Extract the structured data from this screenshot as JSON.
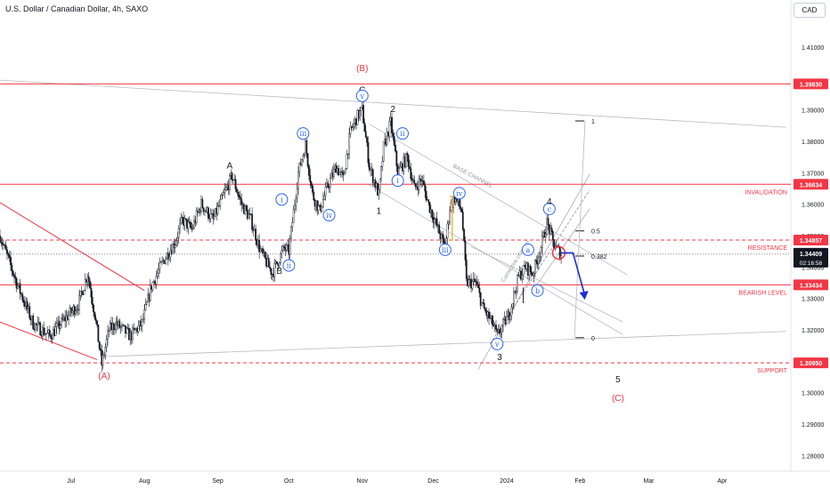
{
  "header": {
    "title": "U.S. Dollar / Canadian Dollar, 4h, SAXO",
    "currency_button": "CAD"
  },
  "chart_data": {
    "type": "candlestick",
    "symbol": "USD/CAD",
    "timeframe": "4h",
    "source": "SAXO",
    "ylim": [
      1.275,
      1.425
    ],
    "y_ticks": [
      1.28,
      1.29,
      1.3,
      1.31,
      1.32,
      1.33,
      1.34,
      1.35,
      1.36,
      1.37,
      1.38,
      1.39,
      1.41
    ],
    "x_ticks": [
      {
        "label": "Jul",
        "date": "2023-07-01"
      },
      {
        "label": "Aug",
        "date": "2023-08-01"
      },
      {
        "label": "Sep",
        "date": "2023-09-01"
      },
      {
        "label": "Oct",
        "date": "2023-10-01"
      },
      {
        "label": "Nov",
        "date": "2023-11-01"
      },
      {
        "label": "Dec",
        "date": "2023-12-01"
      },
      {
        "label": "2024",
        "date": "2024-01-01"
      },
      {
        "label": "Feb",
        "date": "2024-02-01"
      },
      {
        "label": "Mar",
        "date": "2024-03-01"
      },
      {
        "label": "Apr",
        "date": "2024-04-01"
      }
    ],
    "x_range": [
      "2023-06-01",
      "2024-04-30"
    ],
    "price_path": [
      [
        "2023-06-01",
        1.35
      ],
      [
        "2023-06-08",
        1.335
      ],
      [
        "2023-06-15",
        1.322
      ],
      [
        "2023-06-22",
        1.318
      ],
      [
        "2023-06-29",
        1.324
      ],
      [
        "2023-07-04",
        1.328
      ],
      [
        "2023-07-08",
        1.338
      ],
      [
        "2023-07-11",
        1.325
      ],
      [
        "2023-07-14",
        1.309
      ],
      [
        "2023-07-17",
        1.32
      ],
      [
        "2023-07-20",
        1.322
      ],
      [
        "2023-07-26",
        1.318
      ],
      [
        "2023-07-31",
        1.322
      ],
      [
        "2023-08-04",
        1.334
      ],
      [
        "2023-08-09",
        1.342
      ],
      [
        "2023-08-14",
        1.348
      ],
      [
        "2023-08-17",
        1.355
      ],
      [
        "2023-08-21",
        1.352
      ],
      [
        "2023-08-25",
        1.36
      ],
      [
        "2023-08-30",
        1.355
      ],
      [
        "2023-09-03",
        1.362
      ],
      [
        "2023-09-07",
        1.369
      ],
      [
        "2023-09-11",
        1.36
      ],
      [
        "2023-09-15",
        1.355
      ],
      [
        "2023-09-19",
        1.345
      ],
      [
        "2023-09-24",
        1.338
      ],
      [
        "2023-09-29",
        1.346
      ],
      [
        "2023-10-01",
        1.345
      ],
      [
        "2023-10-05",
        1.37
      ],
      [
        "2023-10-08",
        1.379
      ],
      [
        "2023-10-11",
        1.363
      ],
      [
        "2023-10-14",
        1.358
      ],
      [
        "2023-10-17",
        1.365
      ],
      [
        "2023-10-21",
        1.372
      ],
      [
        "2023-10-24",
        1.368
      ],
      [
        "2023-10-27",
        1.383
      ],
      [
        "2023-10-30",
        1.388
      ],
      [
        "2023-11-01",
        1.39
      ],
      [
        "2023-11-04",
        1.372
      ],
      [
        "2023-11-08",
        1.363
      ],
      [
        "2023-11-10",
        1.378
      ],
      [
        "2023-11-13",
        1.386
      ],
      [
        "2023-11-16",
        1.37
      ],
      [
        "2023-11-20",
        1.375
      ],
      [
        "2023-11-23",
        1.365
      ],
      [
        "2023-11-26",
        1.368
      ],
      [
        "2023-11-29",
        1.36
      ],
      [
        "2023-12-03",
        1.352
      ],
      [
        "2023-12-06",
        1.346
      ],
      [
        "2023-12-08",
        1.359
      ],
      [
        "2023-12-10",
        1.362
      ],
      [
        "2023-12-13",
        1.358
      ],
      [
        "2023-12-15",
        1.335
      ],
      [
        "2023-12-19",
        1.335
      ],
      [
        "2023-12-22",
        1.327
      ],
      [
        "2023-12-26",
        1.322
      ],
      [
        "2023-12-28",
        1.318
      ],
      [
        "2024-01-02",
        1.325
      ],
      [
        "2024-01-06",
        1.337
      ],
      [
        "2024-01-09",
        1.34
      ],
      [
        "2024-01-12",
        1.338
      ],
      [
        "2024-01-15",
        1.345
      ],
      [
        "2024-01-18",
        1.354
      ],
      [
        "2024-01-21",
        1.347
      ],
      [
        "2024-01-24",
        1.344
      ]
    ],
    "last_price": 1.34409,
    "countdown": "02:16:58",
    "horizontal_levels": [
      {
        "price": 1.3983,
        "label": "1.39830",
        "style": "solid",
        "color": "#f23645"
      },
      {
        "price": 1.36634,
        "label": "1.36634",
        "name": "INVALIDATION",
        "style": "solid",
        "color": "#f23645"
      },
      {
        "price": 1.34857,
        "label": "1.34857",
        "name": "RESISTANCE",
        "style": "dashed",
        "color": "#f23645"
      },
      {
        "price": 1.33434,
        "label": "1.33434",
        "name": "BEARISH LEVEL",
        "style": "solid",
        "color": "#f23645"
      },
      {
        "price": 1.3095,
        "label": "1.30950",
        "name": "SUPPORT",
        "style": "dashed",
        "color": "#f23645"
      }
    ],
    "fib_levels": [
      {
        "ratio": "1",
        "price": 1.3865
      },
      {
        "ratio": "0.5",
        "price": 1.3515
      },
      {
        "ratio": "0.382",
        "price": 1.3435
      },
      {
        "ratio": "0",
        "price": 1.3175
      }
    ],
    "channel_labels": [
      "BASE CHANNEL",
      "Corrective channel"
    ],
    "wave_labels": [
      {
        "text": "(B)",
        "date": "2023-11-01",
        "price": 1.4035,
        "color": "#f23645",
        "circled": false
      },
      {
        "text": "C",
        "date": "2023-11-01",
        "price": 1.3965,
        "color": "#131722",
        "circled": false
      },
      {
        "text": "v",
        "date": "2023-11-01",
        "price": 1.3945,
        "color": "#2962ff",
        "circled": true
      },
      {
        "text": "A",
        "date": "2023-09-06",
        "price": 1.3725,
        "color": "#131722",
        "circled": false
      },
      {
        "text": "B",
        "date": "2023-09-27",
        "price": 1.339,
        "color": "#131722",
        "circled": false
      },
      {
        "text": "(A)",
        "date": "2023-07-15",
        "price": 1.3055,
        "color": "#f23645",
        "circled": false
      },
      {
        "text": "iii",
        "date": "2023-10-07",
        "price": 1.3825,
        "color": "#2962ff",
        "circled": true
      },
      {
        "text": "i",
        "date": "2023-09-28",
        "price": 1.3615,
        "color": "#2962ff",
        "circled": true
      },
      {
        "text": "ii",
        "date": "2023-10-01",
        "price": 1.3405,
        "color": "#2962ff",
        "circled": true
      },
      {
        "text": "iv",
        "date": "2023-10-18",
        "price": 1.3565,
        "color": "#2962ff",
        "circled": true
      },
      {
        "text": "2",
        "date": "2023-11-14",
        "price": 1.3905,
        "color": "#131722",
        "circled": false
      },
      {
        "text": "1",
        "date": "2023-11-08",
        "price": 1.358,
        "color": "#131722",
        "circled": false
      },
      {
        "text": "ii",
        "date": "2023-11-18",
        "price": 1.3825,
        "color": "#2962ff",
        "circled": true
      },
      {
        "text": "i",
        "date": "2023-11-16",
        "price": 1.3675,
        "color": "#2962ff",
        "circled": true
      },
      {
        "text": "iv",
        "date": "2023-12-12",
        "price": 1.3635,
        "color": "#2962ff",
        "circled": true
      },
      {
        "text": "iii",
        "date": "2023-12-06",
        "price": 1.3455,
        "color": "#2962ff",
        "circled": true
      },
      {
        "text": "v",
        "date": "2023-12-28",
        "price": 1.3155,
        "color": "#2962ff",
        "circled": true
      },
      {
        "text": "3",
        "date": "2023-12-29",
        "price": 1.3115,
        "color": "#131722",
        "circled": false
      },
      {
        "text": "a",
        "date": "2024-01-10",
        "price": 1.3455,
        "color": "#2962ff",
        "circled": true
      },
      {
        "text": "b",
        "date": "2024-01-14",
        "price": 1.3325,
        "color": "#2962ff",
        "circled": true
      },
      {
        "text": "c",
        "date": "2024-01-19",
        "price": 1.3585,
        "color": "#2962ff",
        "circled": true
      },
      {
        "text": "4",
        "date": "2024-01-19",
        "price": 1.361,
        "color": "#131722",
        "circled": false
      },
      {
        "text": "5",
        "date": "2024-02-17",
        "price": 1.3045,
        "color": "#131722",
        "circled": false
      },
      {
        "text": "(C)",
        "date": "2024-02-17",
        "price": 1.2985,
        "color": "#f23645",
        "circled": false
      }
    ],
    "projection": [
      [
        "2024-01-24",
        1.3445
      ],
      [
        "2024-01-29",
        1.3445
      ],
      [
        "2024-02-03",
        1.331
      ]
    ],
    "colors": {
      "up": "#131722",
      "down": "#131722",
      "levels": "#f23645",
      "waves": "#2962ff",
      "projection": "#1e2bd8"
    }
  }
}
